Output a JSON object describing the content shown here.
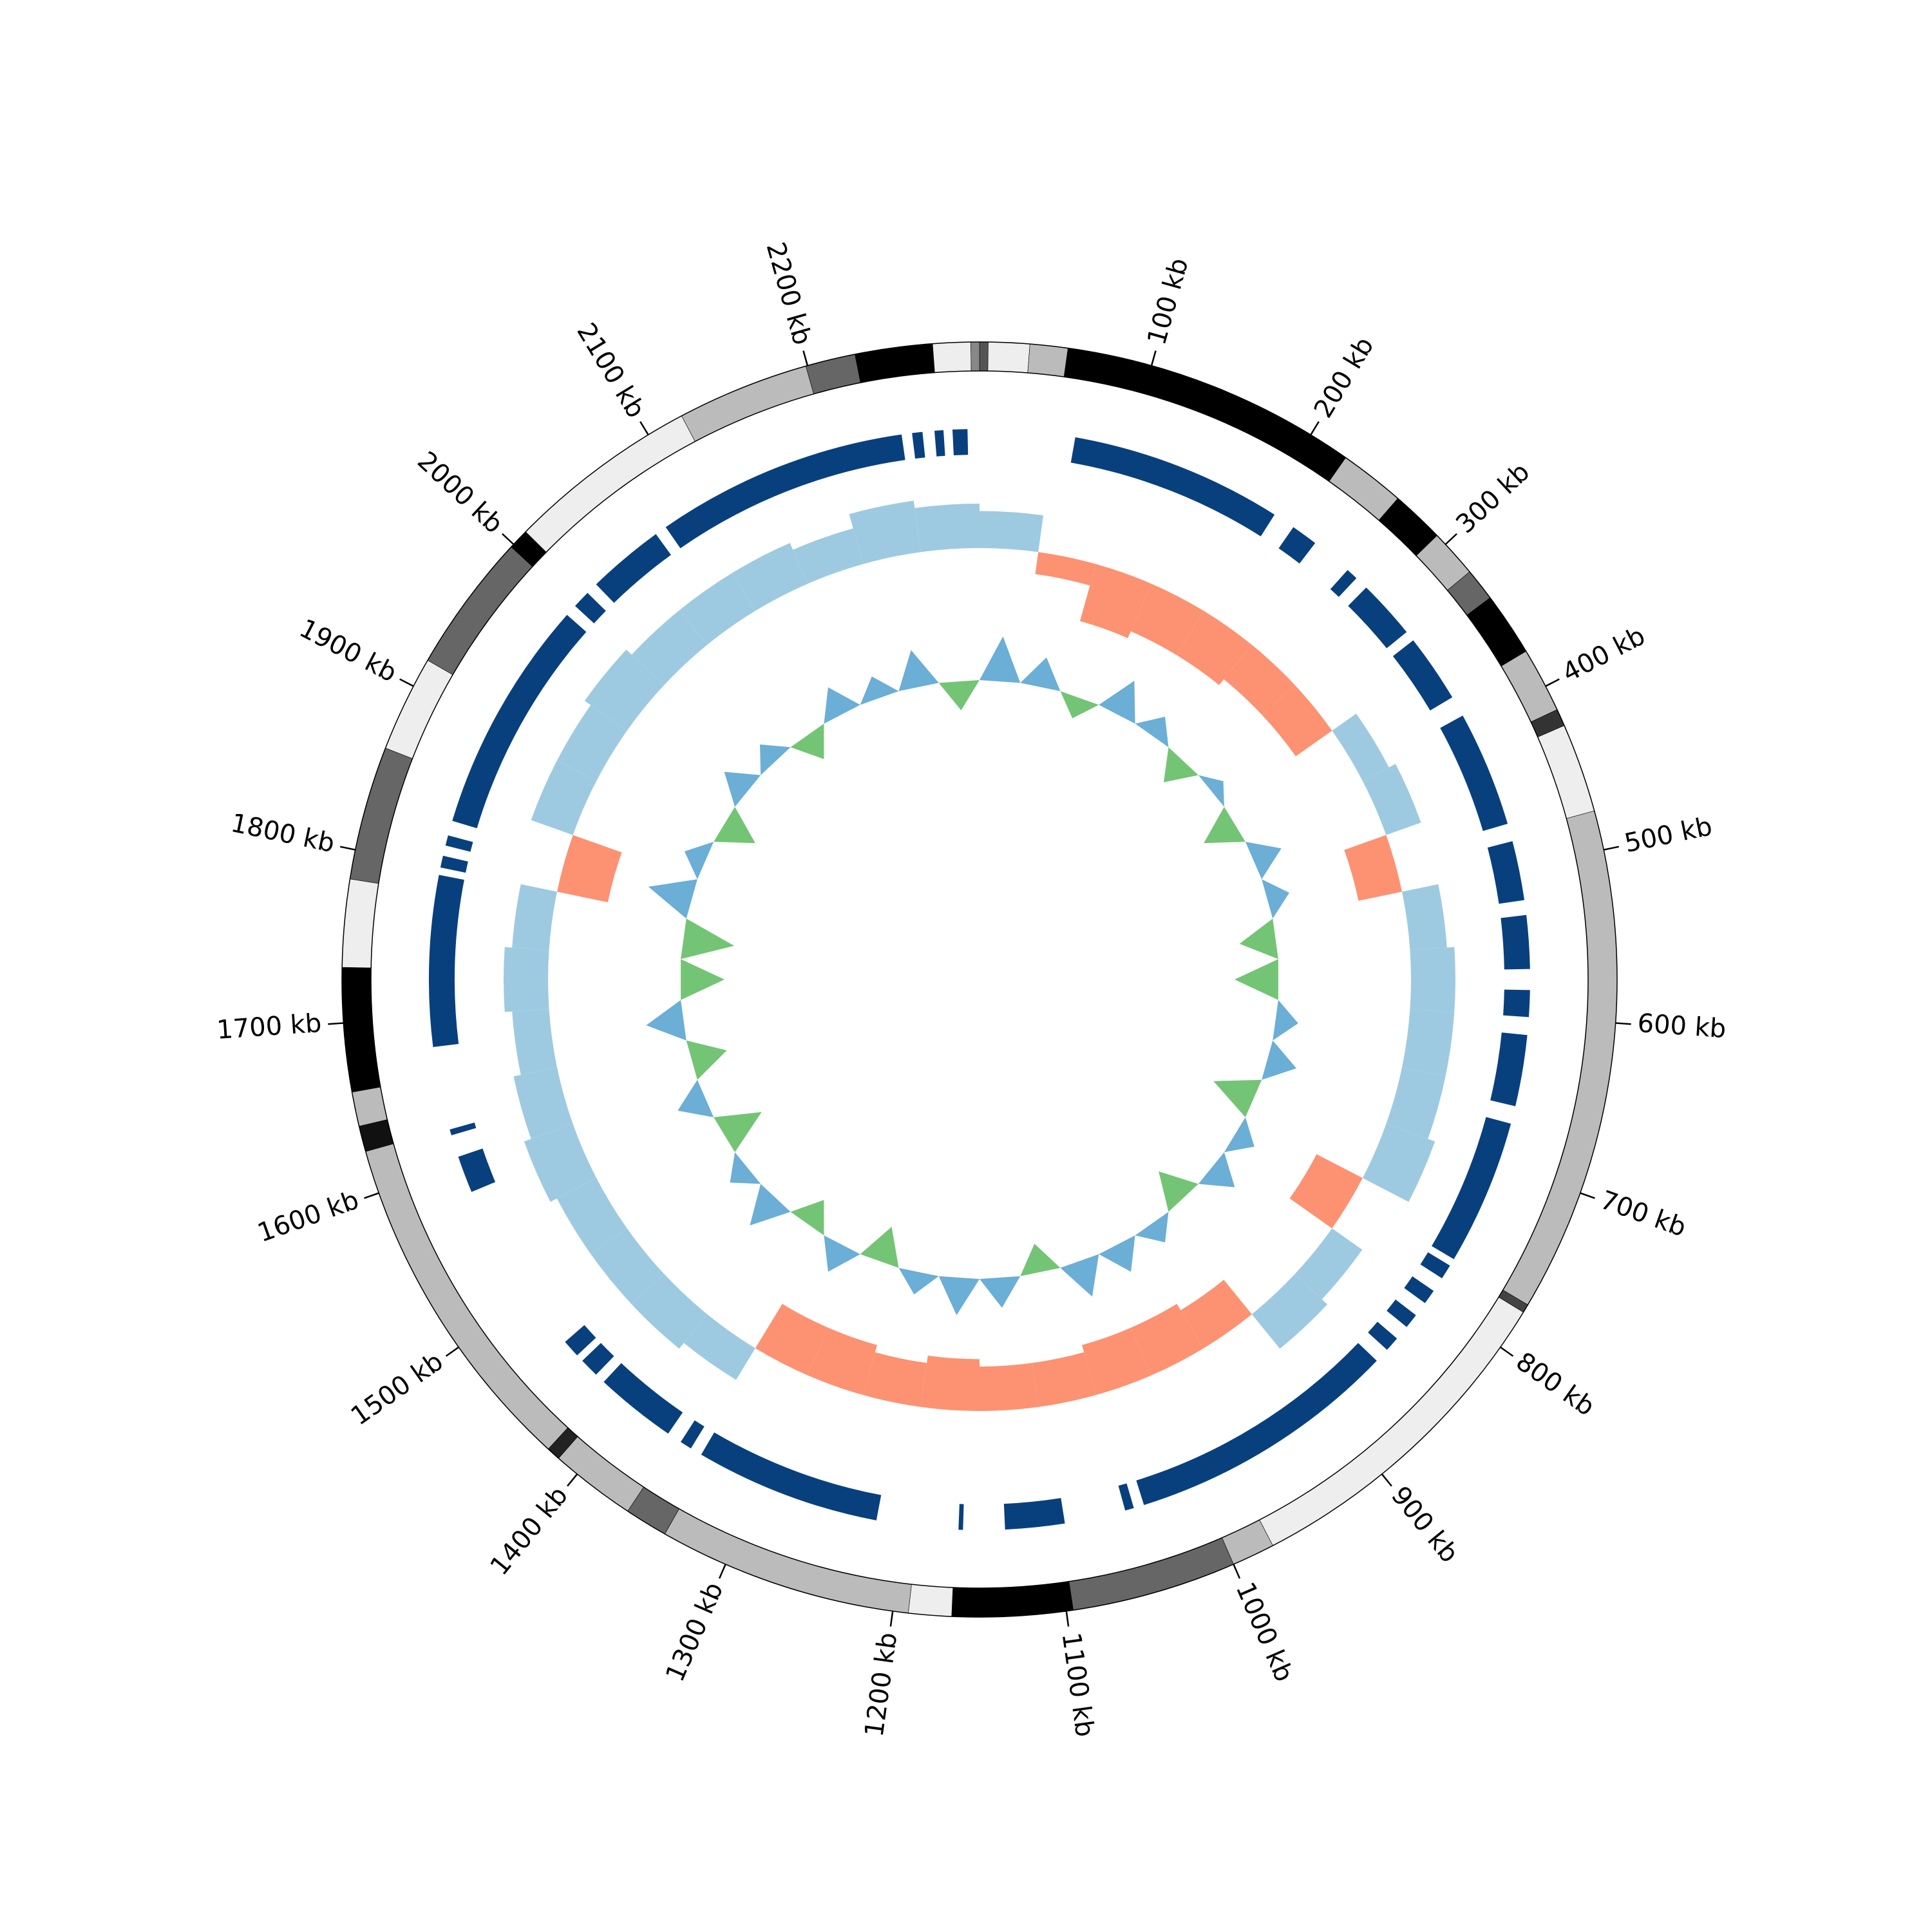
{
  "chart_data": {
    "type": "circular",
    "xlim": [
      0,
      2300
    ],
    "xticks": [
      {
        "value": 100,
        "label": "100 kb"
      },
      {
        "value": 200,
        "label": "200 kb"
      },
      {
        "value": 300,
        "label": "300 kb"
      },
      {
        "value": 400,
        "label": "400 kb"
      },
      {
        "value": 500,
        "label": "500 kb"
      },
      {
        "value": 600,
        "label": "600 kb"
      },
      {
        "value": 700,
        "label": "700 kb"
      },
      {
        "value": 800,
        "label": "800 kb"
      },
      {
        "value": 900,
        "label": "900 kb"
      },
      {
        "value": 1000,
        "label": "1000 kb"
      },
      {
        "value": 1100,
        "label": "1100 kb"
      },
      {
        "value": 1200,
        "label": "1200 kb"
      },
      {
        "value": 1300,
        "label": "1300 kb"
      },
      {
        "value": 1400,
        "label": "1400 kb"
      },
      {
        "value": 1500,
        "label": "1500 kb"
      },
      {
        "value": 1600,
        "label": "1600 kb"
      },
      {
        "value": 1700,
        "label": "1700 kb"
      },
      {
        "value": 1800,
        "label": "1800 kb"
      },
      {
        "value": 1900,
        "label": "1900 kb"
      },
      {
        "value": 2000,
        "label": "2000 kb"
      },
      {
        "value": 2100,
        "label": "2100 kb"
      },
      {
        "value": 2200,
        "label": "2200 kb"
      }
    ],
    "bands": [
      {
        "start": 0,
        "end": 5,
        "color": "#555555"
      },
      {
        "start": 5,
        "end": 29,
        "color": "#eeeeee"
      },
      {
        "start": 29,
        "end": 51,
        "color": "#bbbbbb"
      },
      {
        "start": 51,
        "end": 224,
        "color": "#000000"
      },
      {
        "start": 224,
        "end": 262,
        "color": "#bbbbbb"
      },
      {
        "start": 262,
        "end": 293,
        "color": "#000000"
      },
      {
        "start": 293,
        "end": 321,
        "color": "#bbbbbb"
      },
      {
        "start": 321,
        "end": 340,
        "color": "#666666"
      },
      {
        "start": 340,
        "end": 377,
        "color": "#000000"
      },
      {
        "start": 377,
        "end": 415,
        "color": "#bbbbbb"
      },
      {
        "start": 415,
        "end": 425,
        "color": "#333333"
      },
      {
        "start": 425,
        "end": 477,
        "color": "#eeeeee"
      },
      {
        "start": 477,
        "end": 771,
        "color": "#bbbbbb"
      },
      {
        "start": 771,
        "end": 776,
        "color": "#444444"
      },
      {
        "start": 776,
        "end": 975,
        "color": "#eeeeee"
      },
      {
        "start": 975,
        "end": 1000,
        "color": "#bbbbbb"
      },
      {
        "start": 1000,
        "end": 1096,
        "color": "#666666"
      },
      {
        "start": 1096,
        "end": 1166,
        "color": "#000000"
      },
      {
        "start": 1166,
        "end": 1191,
        "color": "#eeeeee"
      },
      {
        "start": 1191,
        "end": 1339,
        "color": "#bbbbbb"
      },
      {
        "start": 1339,
        "end": 1364,
        "color": "#666666"
      },
      {
        "start": 1364,
        "end": 1414,
        "color": "#bbbbbb"
      },
      {
        "start": 1414,
        "end": 1422,
        "color": "#222222"
      },
      {
        "start": 1422,
        "end": 1625,
        "color": "#bbbbbb"
      },
      {
        "start": 1625,
        "end": 1640,
        "color": "#111111"
      },
      {
        "start": 1640,
        "end": 1660,
        "color": "#bbbbbb"
      },
      {
        "start": 1660,
        "end": 1732,
        "color": "#000000"
      },
      {
        "start": 1732,
        "end": 1783,
        "color": "#eeeeee"
      },
      {
        "start": 1783,
        "end": 1861,
        "color": "#666666"
      },
      {
        "start": 1861,
        "end": 1917,
        "color": "#eeeeee"
      },
      {
        "start": 1917,
        "end": 1998,
        "color": "#666666"
      },
      {
        "start": 1998,
        "end": 2010,
        "color": "#000000"
      },
      {
        "start": 2010,
        "end": 2122,
        "color": "#eeeeee"
      },
      {
        "start": 2122,
        "end": 2199,
        "color": "#bbbbbb"
      },
      {
        "start": 2199,
        "end": 2228,
        "color": "#666666"
      },
      {
        "start": 2228,
        "end": 2273,
        "color": "#000000"
      },
      {
        "start": 2273,
        "end": 2295,
        "color": "#eeeeee"
      },
      {
        "start": 2295,
        "end": 2300,
        "color": "#888888"
      }
    ],
    "gene_color": "#08407e",
    "genes": [
      [
        64,
        207
      ],
      [
        222,
        240
      ],
      [
        268,
        276
      ],
      [
        285,
        325
      ],
      [
        332,
        378
      ],
      [
        392,
        470
      ],
      [
        482,
        522
      ],
      [
        532,
        568
      ],
      [
        582,
        600
      ],
      [
        612,
        660
      ],
      [
        672,
        770
      ],
      [
        775,
        785
      ],
      [
        795,
        805
      ],
      [
        815,
        825
      ],
      [
        835,
        845
      ],
      [
        855,
        1039
      ],
      [
        1046,
        1052
      ],
      [
        1093,
        1133
      ],
      [
        1161,
        1164
      ],
      [
        1219,
        1344
      ],
      [
        1352,
        1360
      ],
      [
        1370,
        1425
      ],
      [
        1432,
        1445
      ],
      [
        1450,
        1462
      ],
      [
        1580,
        1605
      ],
      [
        1620,
        1624
      ],
      [
        1680,
        1795
      ],
      [
        1800,
        1808
      ],
      [
        1815,
        1822
      ],
      [
        1832,
        1990
      ],
      [
        1998,
        2010
      ],
      [
        2018,
        2070
      ],
      [
        2078,
        2248
      ],
      [
        2255,
        2262
      ],
      [
        2270,
        2276
      ],
      [
        2282,
        2292
      ]
    ],
    "x": [
      0,
      50,
      100,
      150,
      200,
      250,
      300,
      350,
      400,
      450,
      500,
      550,
      600,
      650,
      700,
      750,
      800,
      850,
      900,
      950,
      1000,
      1050,
      1100,
      1150,
      1200,
      1250,
      1300,
      1350,
      1400,
      1450,
      1500,
      1550,
      1600,
      1650,
      1700,
      1750,
      1800,
      1850,
      1900,
      1950,
      2000,
      2050,
      2100,
      2150,
      2200,
      2250
    ],
    "gc_skew": {
      "ylim": [
        -1,
        1
      ],
      "positive_color": "#9ecae1",
      "negative_color": "#fc9272",
      "values": [
        0.5,
        -0.3,
        -0.8,
        -0.7,
        -0.7,
        -0.6,
        -0.6,
        0.4,
        0.5,
        -0.6,
        0.5,
        0.6,
        0.6,
        0.6,
        0.7,
        -0.7,
        0.5,
        0.6,
        -0.6,
        -0.7,
        -0.7,
        -0.6,
        -0.6,
        -0.7,
        -0.6,
        -0.7,
        -0.7,
        0.5,
        0.6,
        0.6,
        0.6,
        0.7,
        0.6,
        0.5,
        0.6,
        0.5,
        -0.7,
        0.6,
        0.6,
        0.7,
        0.6,
        0.6,
        0.6,
        0.5,
        0.7,
        0.6
      ]
    },
    "gc_content": {
      "ylim": [
        -1,
        1
      ],
      "positive_color": "#6baed6",
      "negative_color": "#74c476",
      "values": [
        0.6,
        0.4,
        -0.3,
        0.5,
        0.3,
        -0.4,
        0.2,
        -0.5,
        0.4,
        0.3,
        -0.5,
        -0.6,
        0.3,
        0.4,
        -0.6,
        0.3,
        0.4,
        -0.5,
        0.3,
        0.4,
        0.5,
        -0.4,
        0.4,
        0.5,
        0.3,
        -0.5,
        0.4,
        -0.4,
        0.5,
        0.3,
        -0.6,
        0.4,
        -0.5,
        0.5,
        -0.6,
        -0.7,
        0.6,
        0.3,
        -0.5,
        0.4,
        0.3,
        -0.4,
        0.4,
        0.3,
        0.5,
        -0.4
      ]
    }
  }
}
